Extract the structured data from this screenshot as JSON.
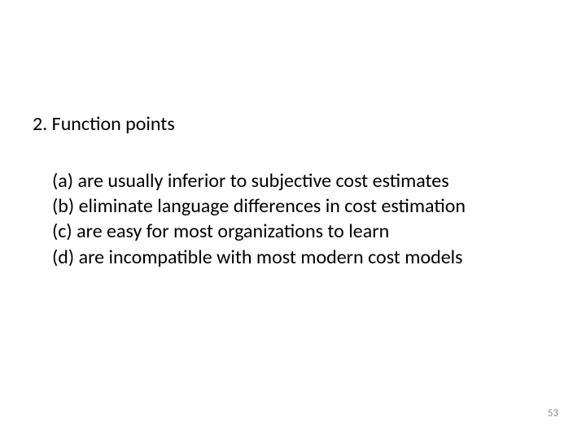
{
  "question": {
    "number": "2.",
    "title": "Function points",
    "options": [
      {
        "label": "(a)",
        "text": "are usually inferior to subjective cost estimates"
      },
      {
        "label": "(b)",
        "text": "eliminate language differences in cost estimation"
      },
      {
        "label": "(c)",
        "text": "are easy for most organizations to learn"
      },
      {
        "label": "(d)",
        "text": "are incompatible with most modern cost models"
      }
    ]
  },
  "page_number": "53",
  "styling": {
    "background_color": "#ffffff",
    "text_color": "#000000",
    "page_number_color": "#898989",
    "title_fontsize": 24,
    "option_fontsize": 24,
    "page_number_fontsize": 13
  }
}
